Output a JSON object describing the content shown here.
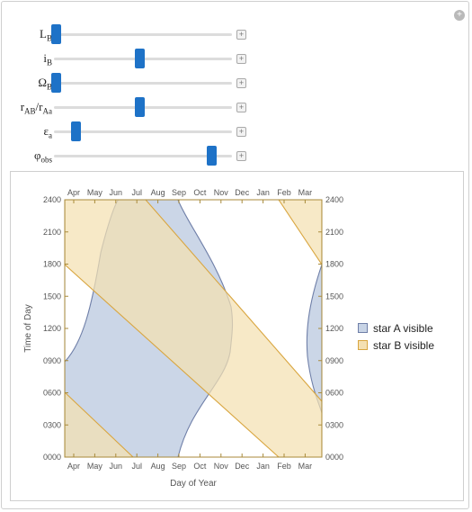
{
  "controls": [
    {
      "base": "L",
      "sub": "B",
      "value": 0.0
    },
    {
      "base": "i",
      "sub": "B",
      "value": 0.5
    },
    {
      "base": "Ω",
      "sub": "B",
      "value": 0.0
    },
    {
      "base": "r",
      "sub": "AB",
      "sep": "/r",
      "sub2": "Aa",
      "value": 0.5
    },
    {
      "base": "ε",
      "sub": "a",
      "value": 0.12
    },
    {
      "base": "φ",
      "sub": "obs",
      "value": 0.93
    }
  ],
  "plus_symbol": "+",
  "corner_symbol": "+",
  "plot": {
    "xlabel": "Day of Year",
    "ylabel": "Time of Day",
    "months": [
      "Apr",
      "May",
      "Jun",
      "Jul",
      "Aug",
      "Sep",
      "Oct",
      "Nov",
      "Dec",
      "Jan",
      "Feb",
      "Mar"
    ],
    "yticks": [
      "0000",
      "0300",
      "0600",
      "0900",
      "1200",
      "1500",
      "1800",
      "2100",
      "2400"
    ],
    "colors": {
      "starA_fill": "#c8d4e6",
      "starA_stroke": "#6f7fa8",
      "starB_fill": "#f4e0b2",
      "starB_stroke": "#d9a640",
      "axis": "#a88a3a"
    }
  },
  "legend": [
    {
      "label": "star A visible",
      "swatch": "starA"
    },
    {
      "label": "star B visible",
      "swatch": "starB"
    }
  ]
}
